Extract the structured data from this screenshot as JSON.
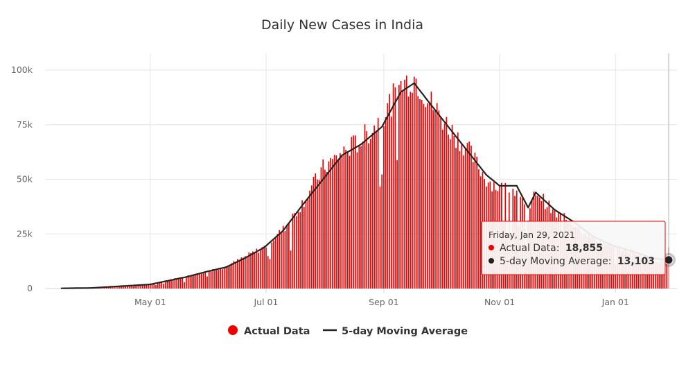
{
  "chart_data": {
    "type": "bar+line",
    "title": "Daily New Cases in India",
    "xlabel": "",
    "ylabel": "",
    "x_start": "2020-03-15",
    "x_end": "2021-01-29",
    "x_ticks": [
      {
        "date": "2020-05-01",
        "label": "May 01"
      },
      {
        "date": "2020-07-01",
        "label": "Jul 01"
      },
      {
        "date": "2020-09-01",
        "label": "Sep 01"
      },
      {
        "date": "2020-11-01",
        "label": "Nov 01"
      },
      {
        "date": "2021-01-01",
        "label": "Jan 01"
      }
    ],
    "y_ticks": [
      {
        "value": 0,
        "label": "0"
      },
      {
        "value": 25000,
        "label": "25k"
      },
      {
        "value": 50000,
        "label": "50k"
      },
      {
        "value": 75000,
        "label": "75k"
      },
      {
        "value": 100000,
        "label": "100k"
      }
    ],
    "ylim": [
      0,
      100000
    ],
    "grid": true,
    "series": [
      {
        "name": "Actual Data",
        "kind": "bar",
        "color": "#ee0000",
        "approximate_daily_values_by_anchor_date": [
          [
            "2020-03-15",
            100
          ],
          [
            "2020-03-31",
            300
          ],
          [
            "2020-04-10",
            900
          ],
          [
            "2020-04-20",
            1400
          ],
          [
            "2020-05-01",
            2000
          ],
          [
            "2020-05-10",
            3800
          ],
          [
            "2020-05-20",
            5500
          ],
          [
            "2020-05-31",
            8000
          ],
          [
            "2020-06-10",
            10000
          ],
          [
            "2020-06-20",
            14500
          ],
          [
            "2020-06-30",
            19000
          ],
          [
            "2020-07-10",
            27000
          ],
          [
            "2020-07-20",
            39000
          ],
          [
            "2020-07-31",
            55000
          ],
          [
            "2020-08-10",
            62000
          ],
          [
            "2020-08-20",
            68000
          ],
          [
            "2020-08-31",
            78000
          ],
          [
            "2020-09-10",
            93000
          ],
          [
            "2020-09-17",
            97000
          ],
          [
            "2020-09-25",
            86000
          ],
          [
            "2020-10-05",
            74000
          ],
          [
            "2020-10-15",
            64000
          ],
          [
            "2020-10-25",
            50000
          ],
          [
            "2020-11-01",
            46000
          ],
          [
            "2020-11-10",
            45000
          ],
          [
            "2020-11-16",
            32000
          ],
          [
            "2020-11-20",
            45000
          ],
          [
            "2020-11-30",
            34000
          ],
          [
            "2020-12-10",
            30000
          ],
          [
            "2020-12-20",
            23000
          ],
          [
            "2020-12-31",
            19000
          ],
          [
            "2021-01-10",
            17000
          ],
          [
            "2021-01-20",
            13000
          ],
          [
            "2021-01-28",
            12000
          ],
          [
            "2021-01-29",
            18855
          ]
        ]
      },
      {
        "name": "5-day Moving Average",
        "kind": "line",
        "color": "#222222",
        "approximate_values_by_anchor_date": [
          [
            "2020-03-15",
            100
          ],
          [
            "2020-03-31",
            250
          ],
          [
            "2020-04-10",
            800
          ],
          [
            "2020-04-20",
            1300
          ],
          [
            "2020-05-01",
            1900
          ],
          [
            "2020-05-10",
            3500
          ],
          [
            "2020-05-20",
            5300
          ],
          [
            "2020-05-31",
            7800
          ],
          [
            "2020-06-10",
            9800
          ],
          [
            "2020-06-20",
            14000
          ],
          [
            "2020-06-30",
            18800
          ],
          [
            "2020-07-10",
            26500
          ],
          [
            "2020-07-20",
            38000
          ],
          [
            "2020-07-31",
            50000
          ],
          [
            "2020-08-10",
            61000
          ],
          [
            "2020-08-20",
            66000
          ],
          [
            "2020-08-31",
            74000
          ],
          [
            "2020-09-10",
            90000
          ],
          [
            "2020-09-17",
            94000
          ],
          [
            "2020-09-25",
            85000
          ],
          [
            "2020-10-05",
            74000
          ],
          [
            "2020-10-15",
            63000
          ],
          [
            "2020-10-25",
            52000
          ],
          [
            "2020-11-01",
            47000
          ],
          [
            "2020-11-10",
            47000
          ],
          [
            "2020-11-16",
            37000
          ],
          [
            "2020-11-20",
            44000
          ],
          [
            "2020-11-30",
            36000
          ],
          [
            "2020-12-10",
            30500
          ],
          [
            "2020-12-20",
            24000
          ],
          [
            "2020-12-31",
            19500
          ],
          [
            "2021-01-10",
            17000
          ],
          [
            "2021-01-20",
            14000
          ],
          [
            "2021-01-29",
            13103
          ]
        ]
      }
    ],
    "legend": {
      "placement": "bottom-center",
      "items": [
        "Actual Data",
        "5-day Moving Average"
      ]
    },
    "tooltip": {
      "date": "Friday, Jan 29, 2021",
      "actual_label": "Actual Data:",
      "actual_value": "18,855",
      "avg_label": "5-day Moving Average:",
      "avg_value": "13,103",
      "actual_color": "#ee0000",
      "avg_color": "#222222"
    },
    "colors": {
      "bar": "#ee0000",
      "line": "#222222",
      "grid": "#e6e6e6",
      "hover_line": "#cccccc"
    }
  }
}
